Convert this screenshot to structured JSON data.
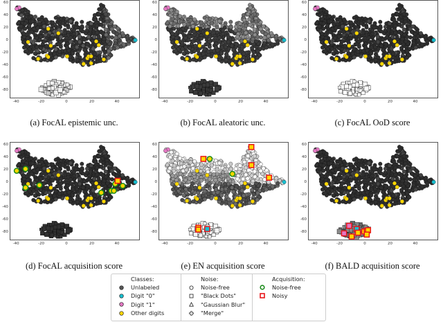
{
  "chart_data": [
    {
      "type": "scatter",
      "id": "a",
      "title": "(a) FocAL epistemic unc.",
      "xlim": [
        -45,
        57
      ],
      "ylim": [
        -90,
        65
      ],
      "xticks": [
        -40,
        -20,
        0,
        20,
        40
      ],
      "yticks": [
        60,
        40,
        20,
        0,
        -20,
        -40,
        -60,
        -80
      ],
      "unlabeled_shading": "dark gray, lighter toward right arm",
      "noise_cluster_shading": "white/light gray",
      "acquired": []
    },
    {
      "type": "scatter",
      "id": "b",
      "title": "(b) FocAL aleatoric unc.",
      "xlim": [
        -45,
        57
      ],
      "ylim": [
        -90,
        65
      ],
      "xticks": [
        -40,
        -20,
        0,
        20,
        40
      ],
      "yticks": [
        60,
        40,
        20,
        0,
        -20,
        -40,
        -60,
        -80
      ],
      "unlabeled_shading": "dark gray main mass, lighter gray upper-right arm",
      "noise_cluster_shading": "dark gray",
      "acquired": []
    },
    {
      "type": "scatter",
      "id": "c",
      "title": "(c) FocAL OoD score",
      "xlim": [
        -45,
        57
      ],
      "ylim": [
        -90,
        65
      ],
      "xticks": [
        -40,
        -20,
        0,
        20,
        40
      ],
      "yticks": [
        60,
        40,
        20,
        0,
        -20,
        -40,
        -60,
        -80
      ],
      "unlabeled_shading": "dark gray",
      "noise_cluster_shading": "white",
      "acquired": []
    },
    {
      "type": "scatter",
      "id": "d",
      "title": "(d) FocAL acquisition score",
      "xlim": [
        -45,
        57
      ],
      "ylim": [
        -90,
        65
      ],
      "xticks": [
        -40,
        -20,
        0,
        20,
        40
      ],
      "yticks": [
        60,
        40,
        20,
        0,
        -20,
        -40,
        -60,
        -80
      ],
      "unlabeled_shading": "dark gray",
      "noise_cluster_shading": "dark gray",
      "acquired": [
        {
          "x": -40,
          "y": 20,
          "kind": "noise-free"
        },
        {
          "x": -33,
          "y": 23,
          "kind": "noise-free"
        },
        {
          "x": -33,
          "y": -7,
          "kind": "noise-free"
        },
        {
          "x": -22,
          "y": -3,
          "kind": "noise-free"
        },
        {
          "x": 27,
          "y": -15,
          "kind": "noise-free"
        },
        {
          "x": 35,
          "y": -12,
          "kind": "noise-free"
        },
        {
          "x": 37,
          "y": -12,
          "kind": "noise-free"
        },
        {
          "x": 38,
          "y": -1,
          "kind": "noise-free"
        },
        {
          "x": 44,
          "y": -4,
          "kind": "noise-free"
        },
        {
          "x": 40,
          "y": 4,
          "kind": "noisy"
        }
      ]
    },
    {
      "type": "scatter",
      "id": "e",
      "title": "(e) EN acquisition score",
      "xlim": [
        -45,
        57
      ],
      "ylim": [
        -90,
        65
      ],
      "xticks": [
        -40,
        -20,
        0,
        20,
        40
      ],
      "yticks": [
        60,
        40,
        20,
        0,
        -20,
        -40,
        -60,
        -80
      ],
      "unlabeled_shading": "light gray/white upper region, darker gray lower",
      "noise_cluster_shading": "white",
      "acquired": [
        {
          "x": -10,
          "y": 39,
          "kind": "noisy"
        },
        {
          "x": -5,
          "y": 39,
          "kind": "noise-free"
        },
        {
          "x": 13,
          "y": 15,
          "kind": "noise-free"
        },
        {
          "x": 28,
          "y": 58,
          "kind": "noisy"
        },
        {
          "x": 28,
          "y": 29,
          "kind": "noisy"
        },
        {
          "x": 42,
          "y": 9,
          "kind": "noisy"
        },
        {
          "x": -14,
          "y": -71,
          "kind": "noisy"
        },
        {
          "x": -14,
          "y": -74,
          "kind": "noisy"
        },
        {
          "x": -7,
          "y": -73,
          "kind": "noisy"
        }
      ]
    },
    {
      "type": "scatter",
      "id": "f",
      "title": "(f) BALD acquisition score",
      "xlim": [
        -45,
        57
      ],
      "ylim": [
        -90,
        65
      ],
      "xticks": [
        -40,
        -20,
        0,
        20,
        40
      ],
      "yticks": [
        60,
        40,
        20,
        0,
        -20,
        -40,
        -60,
        -80
      ],
      "unlabeled_shading": "dark gray",
      "noise_cluster_shading": "gray",
      "acquired": [
        {
          "x": -13,
          "y": -68,
          "kind": "noisy"
        },
        {
          "x": -17,
          "y": -80,
          "kind": "noisy"
        },
        {
          "x": -11,
          "y": -85,
          "kind": "noisy"
        },
        {
          "x": -7,
          "y": -73,
          "kind": "noisy"
        },
        {
          "x": -6,
          "y": -79,
          "kind": "noisy"
        },
        {
          "x": -1,
          "y": -77,
          "kind": "noisy"
        },
        {
          "x": 1,
          "y": -76,
          "kind": "noisy"
        },
        {
          "x": 2,
          "y": -75,
          "kind": "noisy"
        },
        {
          "x": 1,
          "y": -82,
          "kind": "noisy"
        }
      ]
    }
  ],
  "shared_points": {
    "digit0": [
      {
        "x": 54,
        "y": 2
      }
    ],
    "digit1": [
      {
        "x": -38,
        "y": 54
      },
      {
        "x": -40,
        "y": 52
      }
    ],
    "other_digits": [
      {
        "x": -15,
        "y": 20
      },
      {
        "x": -7,
        "y": 13
      },
      {
        "x": -31,
        "y": -1
      },
      {
        "x": -13,
        "y": -7
      },
      {
        "x": -16,
        "y": -23
      },
      {
        "x": -15,
        "y": -25
      },
      {
        "x": -23,
        "y": -28
      },
      {
        "x": 0,
        "y": -24
      },
      {
        "x": 13,
        "y": -36
      },
      {
        "x": 16,
        "y": -27
      },
      {
        "x": 17,
        "y": -24
      },
      {
        "x": 19,
        "y": -24
      },
      {
        "x": 19,
        "y": -35
      },
      {
        "x": 23,
        "y": 0
      },
      {
        "x": 25,
        "y": -6
      },
      {
        "x": 29,
        "y": -29
      }
    ]
  },
  "axes": {
    "yticks": [
      "60",
      "40",
      "20",
      "0",
      "-20",
      "-40",
      "-60",
      "-80"
    ],
    "xticks": [
      "-40",
      "-20",
      "0",
      "20",
      "40"
    ]
  },
  "captions": [
    "(a) FocAL epistemic unc.",
    "(b) FocAL aleatoric unc.",
    "(c) FocAL OoD score",
    "(d) FocAL acquisition score",
    "(e) EN acquisition score",
    "(f) BALD acquisition score"
  ],
  "legend": {
    "classes": {
      "title": "Classes:",
      "items": [
        {
          "label": "Unlabeled",
          "color": "#555555"
        },
        {
          "label": "Digit \"0\"",
          "color": "#17becf"
        },
        {
          "label": "Digit \"1\"",
          "color": "#e377c2"
        },
        {
          "label": "Other digits",
          "color": "#ffd700"
        }
      ]
    },
    "noise": {
      "title": "Noise:",
      "items": [
        {
          "label": "Noise-free",
          "marker": "circle"
        },
        {
          "label": "\"Black Dots\"",
          "marker": "square"
        },
        {
          "label": "\"Gaussian Blur\"",
          "marker": "triangle"
        },
        {
          "label": "\"Merge\"",
          "marker": "plus"
        }
      ]
    },
    "acquisition": {
      "title": "Acquisition:",
      "items": [
        {
          "label": "Noise-free",
          "color": "#1a8a1a"
        },
        {
          "label": "Noisy",
          "color": "#e8161b"
        }
      ]
    }
  },
  "colors": {
    "unlabeled_dark": "#333333",
    "unlabeled_mid": "#6a6a6a",
    "unlabeled_light": "#b8b8b8",
    "digit0": "#17becf",
    "digit1": "#e377c2",
    "other": "#ffd700",
    "acq_clean": "#1a8a1a",
    "acq_noisy": "#e8161b"
  }
}
